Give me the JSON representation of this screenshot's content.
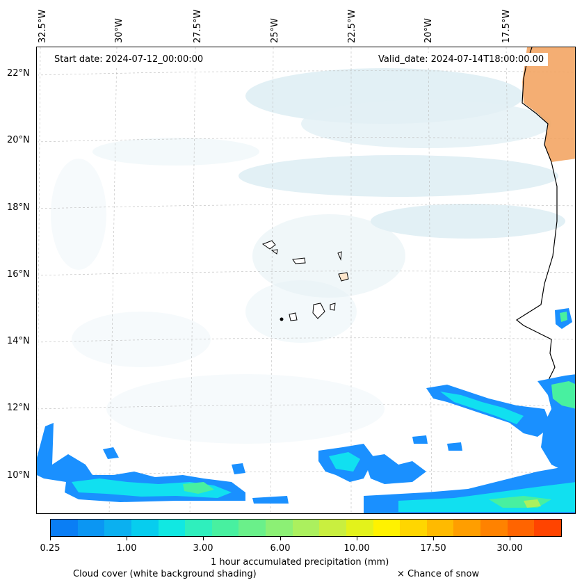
{
  "map": {
    "start_date_text": "Start date: 2024-07-12_00:00:00",
    "valid_date_text": "Valid_date: 2024-07-14T18:00:00.00",
    "lon_labels": [
      "32.5°W",
      "30°W",
      "27.5°W",
      "25°W",
      "22.5°W",
      "20°W",
      "17.5°W"
    ],
    "lat_labels": [
      "22°N",
      "20°N",
      "18°N",
      "16°N",
      "14°N",
      "12°N",
      "10°N"
    ]
  },
  "colorbar": {
    "title": "1 hour accumulated precipitation (mm)",
    "tick_labels": [
      "0.25",
      "1.00",
      "3.00",
      "6.00",
      "10.00",
      "17.50",
      "30.00"
    ],
    "colors": [
      "#0a7ef5",
      "#0b96f3",
      "#0bb0f0",
      "#07cdee",
      "#11e8e2",
      "#2fefbd",
      "#48f0a0",
      "#6af08a",
      "#8cf075",
      "#abf05e",
      "#c9ef3f",
      "#e3f21b",
      "#fff200",
      "#ffd600",
      "#ffba00",
      "#ff9e00",
      "#ff8200",
      "#ff6400",
      "#ff4400"
    ]
  },
  "captions": {
    "cloud_cover": "Cloud cover (white background shading)",
    "snow": "× Chance of snow"
  },
  "colors": {
    "land_orange": "#f2a05a",
    "cloud_blue": "#cfe6ee",
    "precip_blue": "#1a90ff",
    "precip_cyan": "#11e0f0"
  }
}
